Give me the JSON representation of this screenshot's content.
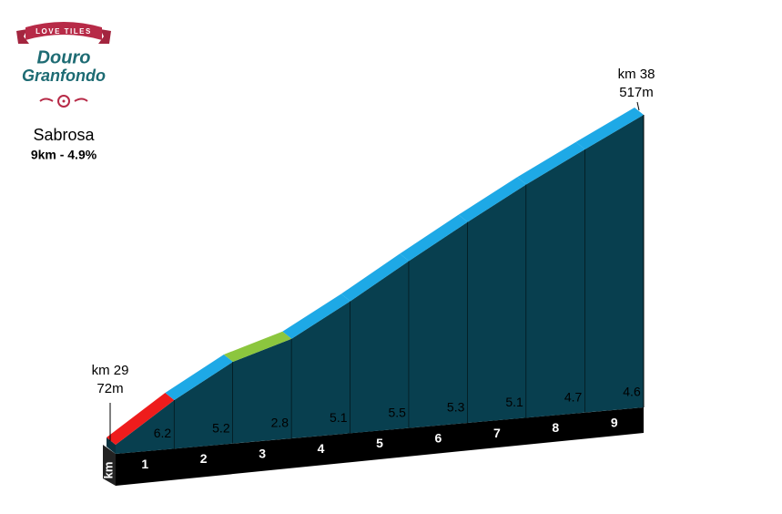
{
  "logo": {
    "ribbon": "LOVE TILES",
    "line1": "Douro",
    "line2": "Granfondo"
  },
  "chart_data": {
    "type": "profile",
    "title": "Sabrosa",
    "subtitle": "9km - 4.9%",
    "x_label": "km",
    "start": {
      "km": {
        "value": 29,
        "label": "km 29"
      },
      "elevation": {
        "value": 72,
        "label": "72m"
      }
    },
    "end": {
      "km": {
        "value": 38,
        "label": "km 38"
      },
      "elevation": {
        "value": 517,
        "label": "517m"
      }
    },
    "categories": [
      "1",
      "2",
      "3",
      "4",
      "5",
      "6",
      "7",
      "8",
      "9"
    ],
    "values": [
      6.2,
      5.2,
      2.8,
      5.1,
      5.5,
      5.3,
      5.1,
      4.7,
      4.6
    ],
    "colors": [
      "#ee1c1c",
      "#1ea9e6",
      "#8cc63e",
      "#1ea9e6",
      "#1ea9e6",
      "#1ea9e6",
      "#1ea9e6",
      "#1ea9e6",
      "#1ea9e6"
    ],
    "face_color": "#083f4f"
  }
}
